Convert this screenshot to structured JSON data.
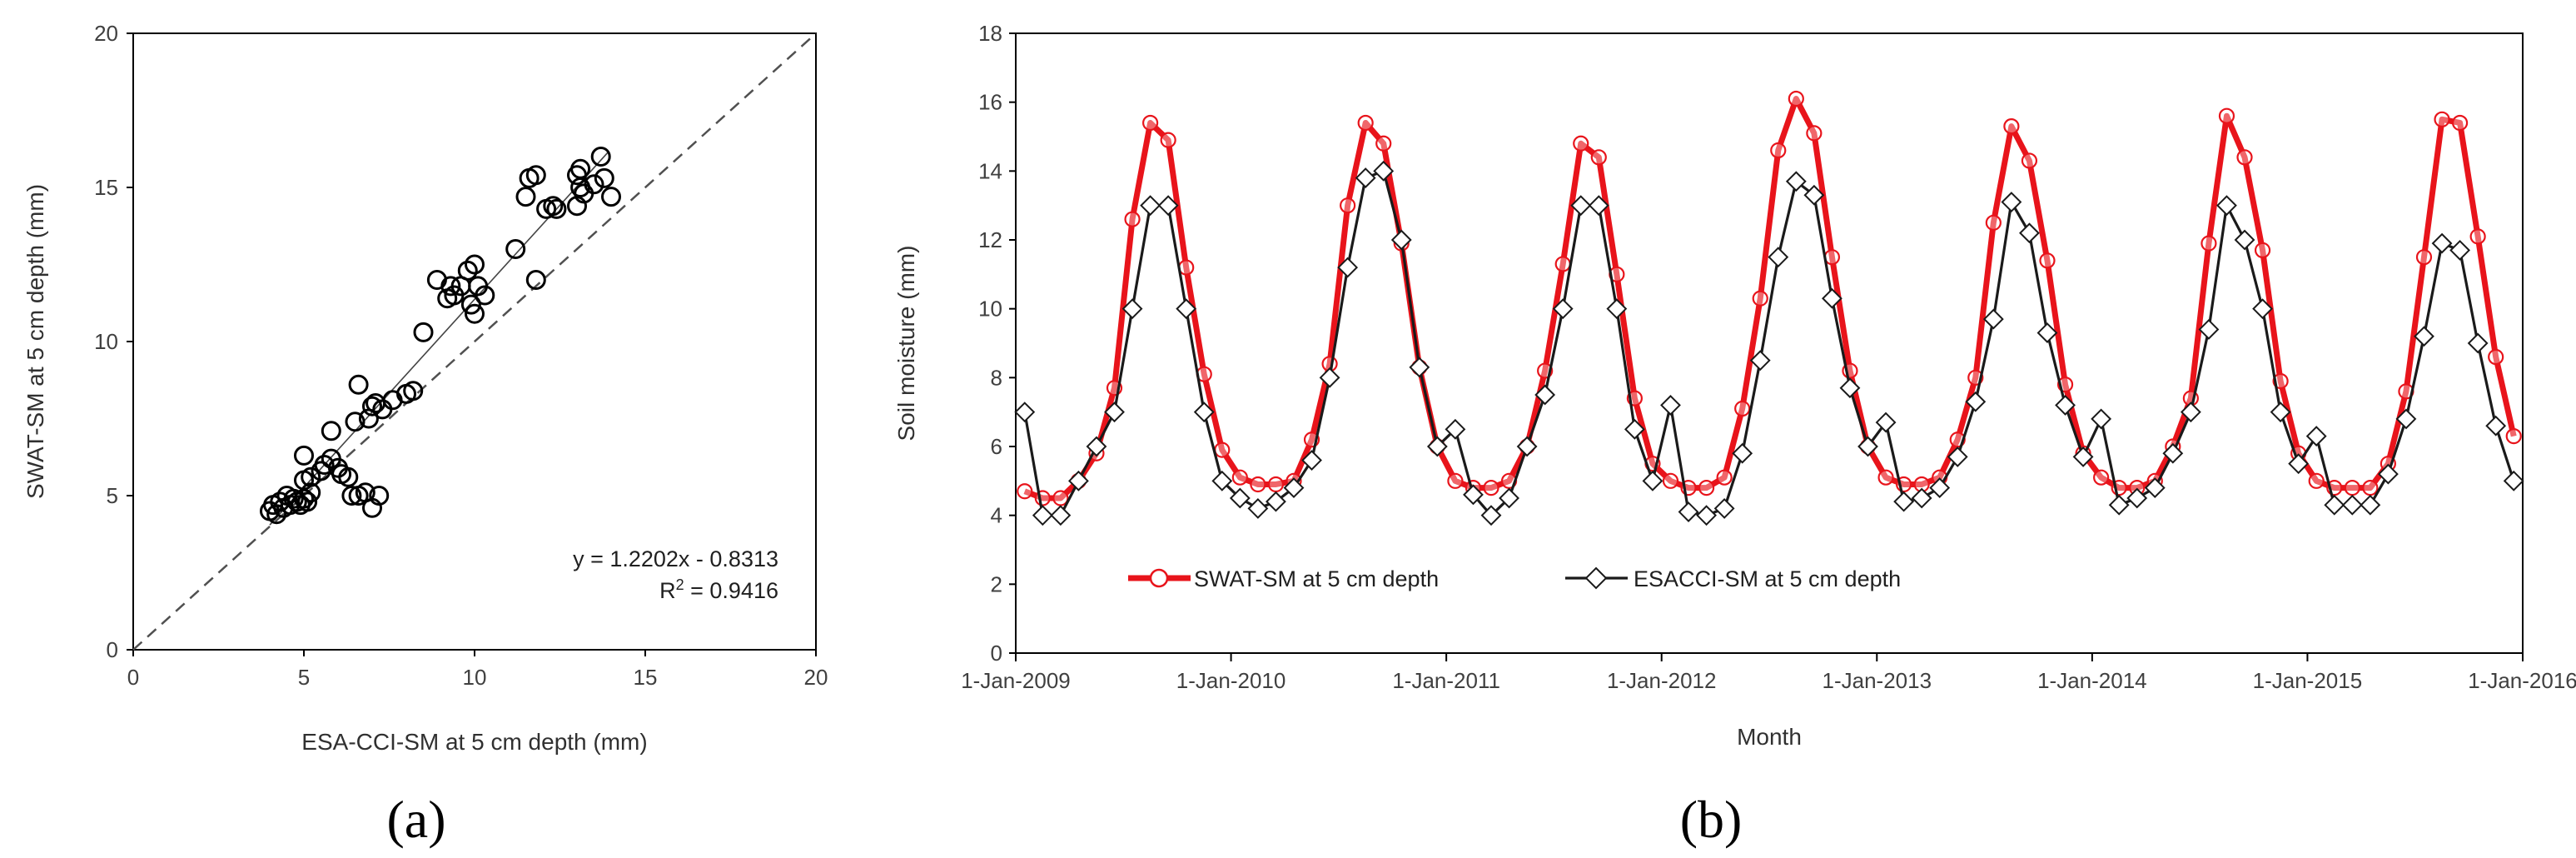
{
  "figure": {
    "label_a": "(a)",
    "label_b": "(b)"
  },
  "chart_data": [
    {
      "type": "scatter",
      "xlabel": "ESA-CCI-SM at 5 cm depth (mm)",
      "ylabel": "SWAT-SM at 5 cm depth (mm)",
      "xlim": [
        0,
        20
      ],
      "ylim": [
        0,
        20
      ],
      "xticks": [
        "0",
        "5",
        "10",
        "15",
        "20"
      ],
      "yticks": [
        "0",
        "5",
        "10",
        "15",
        "20"
      ],
      "regression_equation": "y = 1.2202x - 0.8313",
      "r2_label": "R",
      "r2_value": " = 0.9416",
      "trendline": {
        "slope": 1.2202,
        "intercept": -0.8313,
        "x_from": 4.0,
        "x_to": 13.9
      },
      "reference_line": "1:1",
      "points": [
        [
          4.0,
          4.5
        ],
        [
          4.1,
          4.7
        ],
        [
          4.2,
          4.4
        ],
        [
          4.3,
          4.8
        ],
        [
          4.4,
          4.6
        ],
        [
          4.5,
          5.0
        ],
        [
          4.6,
          4.7
        ],
        [
          4.7,
          4.9
        ],
        [
          4.8,
          4.8
        ],
        [
          4.9,
          4.7
        ],
        [
          5.0,
          4.9
        ],
        [
          5.1,
          4.8
        ],
        [
          5.2,
          5.1
        ],
        [
          5.0,
          5.5
        ],
        [
          5.0,
          6.3
        ],
        [
          5.2,
          5.6
        ],
        [
          5.5,
          5.8
        ],
        [
          5.6,
          6.0
        ],
        [
          5.8,
          6.2
        ],
        [
          6.0,
          5.9
        ],
        [
          6.1,
          5.7
        ],
        [
          6.3,
          5.6
        ],
        [
          5.8,
          7.1
        ],
        [
          6.4,
          5.0
        ],
        [
          6.6,
          5.0
        ],
        [
          6.8,
          5.1
        ],
        [
          7.0,
          4.6
        ],
        [
          7.2,
          5.0
        ],
        [
          6.5,
          7.4
        ],
        [
          6.6,
          8.6
        ],
        [
          6.9,
          7.5
        ],
        [
          7.0,
          7.9
        ],
        [
          7.1,
          8.0
        ],
        [
          7.3,
          7.8
        ],
        [
          7.6,
          8.1
        ],
        [
          8.0,
          8.3
        ],
        [
          8.2,
          8.4
        ],
        [
          8.5,
          10.3
        ],
        [
          8.9,
          12.0
        ],
        [
          9.2,
          11.4
        ],
        [
          9.3,
          11.8
        ],
        [
          9.4,
          11.5
        ],
        [
          9.6,
          11.8
        ],
        [
          9.8,
          12.3
        ],
        [
          10.0,
          12.5
        ],
        [
          10.1,
          11.8
        ],
        [
          9.9,
          11.2
        ],
        [
          10.0,
          10.9
        ],
        [
          10.3,
          11.5
        ],
        [
          11.2,
          13.0
        ],
        [
          11.5,
          14.7
        ],
        [
          11.6,
          15.3
        ],
        [
          11.8,
          15.4
        ],
        [
          12.1,
          14.3
        ],
        [
          12.3,
          14.4
        ],
        [
          12.4,
          14.3
        ],
        [
          11.8,
          12.0
        ],
        [
          13.0,
          14.4
        ],
        [
          13.0,
          15.4
        ],
        [
          13.1,
          15.6
        ],
        [
          13.1,
          15.0
        ],
        [
          13.2,
          14.8
        ],
        [
          13.5,
          15.1
        ],
        [
          13.7,
          16.0
        ],
        [
          13.8,
          15.3
        ],
        [
          14.0,
          14.7
        ]
      ]
    },
    {
      "type": "line",
      "xlabel": "Month",
      "ylabel": "Soil moisture (mm)",
      "ylim": [
        0,
        18
      ],
      "yticks": [
        "0",
        "2",
        "4",
        "6",
        "8",
        "10",
        "12",
        "14",
        "16",
        "18"
      ],
      "xlim_months": [
        0,
        84
      ],
      "x_tick_labels": [
        "1-Jan-2009",
        "1-Jan-2010",
        "1-Jan-2011",
        "1-Jan-2012",
        "1-Jan-2013",
        "1-Jan-2014",
        "1-Jan-2015",
        "1-Jan-2016"
      ],
      "x_tick_months": [
        0,
        12,
        24,
        36,
        48,
        60,
        72,
        84
      ],
      "legend": {
        "placement": "bottom-left"
      },
      "series": [
        {
          "name": "SWAT-SM at 5 cm depth",
          "color": "#e8141b",
          "marker": "circle",
          "values": [
            4.7,
            4.5,
            4.5,
            5.0,
            5.8,
            7.7,
            12.6,
            15.4,
            14.9,
            11.2,
            8.1,
            5.9,
            5.1,
            4.9,
            4.9,
            5.0,
            6.2,
            8.4,
            13.0,
            15.4,
            14.8,
            11.9,
            8.3,
            6.0,
            5.0,
            4.8,
            4.8,
            5.0,
            6.0,
            8.2,
            11.3,
            14.8,
            14.4,
            11.0,
            7.4,
            5.5,
            5.0,
            4.8,
            4.8,
            5.1,
            7.1,
            10.3,
            14.6,
            16.1,
            15.1,
            11.5,
            8.2,
            6.0,
            5.1,
            4.9,
            4.9,
            5.1,
            6.2,
            8.0,
            12.5,
            15.3,
            14.3,
            11.4,
            7.8,
            5.8,
            5.1,
            4.8,
            4.8,
            5.0,
            6.0,
            7.4,
            11.9,
            15.6,
            14.4,
            11.7,
            7.9,
            5.8,
            5.0,
            4.8,
            4.8,
            4.8,
            5.5,
            7.6,
            11.5,
            15.5,
            15.4,
            12.1,
            8.6,
            6.3
          ]
        },
        {
          "name": "ESACCI-SM at 5 cm depth",
          "color": "#1a1a1a",
          "marker": "diamond",
          "values": [
            7.0,
            4.0,
            4.0,
            5.0,
            6.0,
            7.0,
            10.0,
            13.0,
            13.0,
            10.0,
            7.0,
            5.0,
            4.5,
            4.2,
            4.4,
            4.8,
            5.6,
            8.0,
            11.2,
            13.8,
            14.0,
            12.0,
            8.3,
            6.0,
            6.5,
            4.6,
            4.0,
            4.5,
            6.0,
            7.5,
            10.0,
            13.0,
            13.0,
            10.0,
            6.5,
            5.0,
            7.2,
            4.1,
            4.0,
            4.2,
            5.8,
            8.5,
            11.5,
            13.7,
            13.3,
            10.3,
            7.7,
            6.0,
            6.7,
            4.4,
            4.5,
            4.8,
            5.7,
            7.3,
            9.7,
            13.1,
            12.2,
            9.3,
            7.2,
            5.7,
            6.8,
            4.3,
            4.5,
            4.8,
            5.8,
            7.0,
            9.4,
            13.0,
            12.0,
            10.0,
            7.0,
            5.5,
            6.3,
            4.3,
            4.3,
            4.3,
            5.2,
            6.8,
            9.2,
            11.9,
            11.7,
            9.0,
            6.6,
            5.0
          ]
        }
      ]
    }
  ]
}
